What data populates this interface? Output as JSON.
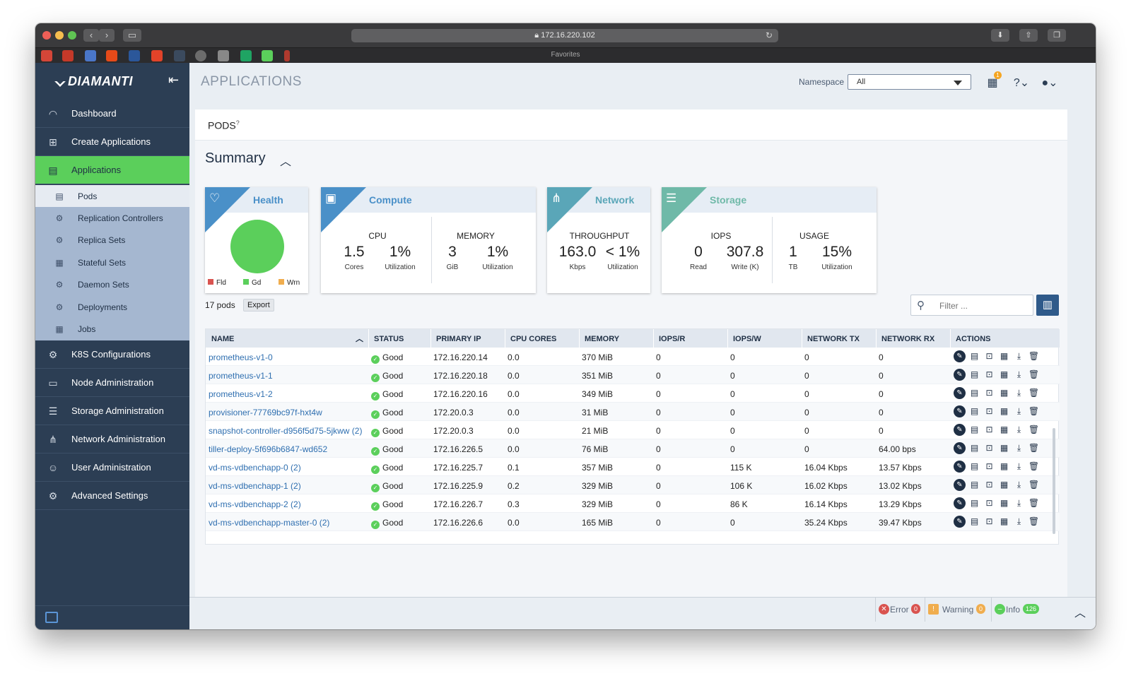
{
  "browser": {
    "url": "172.16.220.102",
    "favorites_label": "Favorites"
  },
  "sidebar": {
    "brand": "DIAMANTI",
    "items": [
      {
        "label": "Dashboard",
        "icon": "speedometer-icon"
      },
      {
        "label": "Create Applications",
        "icon": "plus-square-icon"
      },
      {
        "label": "Applications",
        "icon": "list-icon",
        "active": true
      },
      {
        "label": "K8S Configurations",
        "icon": "gear-cluster-icon"
      },
      {
        "label": "Node Administration",
        "icon": "server-icon"
      },
      {
        "label": "Storage Administration",
        "icon": "database-icon"
      },
      {
        "label": "Network Administration",
        "icon": "network-tree-icon"
      },
      {
        "label": "User Administration",
        "icon": "users-icon"
      },
      {
        "label": "Advanced Settings",
        "icon": "gears-icon"
      }
    ],
    "sub_items": [
      {
        "label": "Pods",
        "icon": "pod-icon",
        "active": true
      },
      {
        "label": "Replication Controllers",
        "icon": "replication-icon"
      },
      {
        "label": "Replica Sets",
        "icon": "replica-icon"
      },
      {
        "label": "Stateful Sets",
        "icon": "stateful-icon"
      },
      {
        "label": "Daemon Sets",
        "icon": "daemon-icon"
      },
      {
        "label": "Deployments",
        "icon": "deployment-icon"
      },
      {
        "label": "Jobs",
        "icon": "jobs-icon"
      }
    ]
  },
  "header": {
    "title": "APPLICATIONS",
    "namespace_label": "Namespace",
    "namespace_value": "All",
    "notifications_badge": "1"
  },
  "pods": {
    "title": "PODS",
    "help": "?",
    "summary_title": "Summary"
  },
  "cards": {
    "health": {
      "title": "Health",
      "legend": [
        "Fld",
        "Gd",
        "Wrn"
      ],
      "colors": [
        "#d9534f",
        "#5bcf5b",
        "#f0ad4e"
      ]
    },
    "compute": {
      "title": "Compute",
      "cpu_label": "CPU",
      "cpu_value": "1.5",
      "cpu_unit": "Cores",
      "cpu_util": "1%",
      "cpu_util_label": "Utilization",
      "mem_label": "MEMORY",
      "mem_value": "3",
      "mem_unit": "GiB",
      "mem_util": "1%",
      "mem_util_label": "Utilization"
    },
    "network": {
      "title": "Network",
      "tp_label": "THROUGHPUT",
      "tp_value": "163.0",
      "tp_unit": "Kbps",
      "tp_util": "< 1%",
      "tp_util_label": "Utilization"
    },
    "storage": {
      "title": "Storage",
      "iops_label": "IOPS",
      "read_value": "0",
      "read_label": "Read",
      "write_value": "307.8",
      "write_label": "Write (K)",
      "usage_label": "USAGE",
      "usage_value": "1",
      "usage_unit": "TB",
      "usage_util": "15%",
      "usage_util_label": "Utilization"
    }
  },
  "list": {
    "count": "17 pods",
    "export": "Export",
    "filter_placeholder": "Filter ..."
  },
  "table": {
    "columns": [
      "NAME",
      "STATUS",
      "PRIMARY IP",
      "CPU CORES",
      "MEMORY",
      "IOPS/R",
      "IOPS/W",
      "NETWORK TX",
      "NETWORK RX",
      "ACTIONS"
    ],
    "rows": [
      {
        "name": "prometheus-v1-0",
        "status": "Good",
        "ip": "172.16.220.14",
        "cpu": "0.0",
        "mem": "370 MiB",
        "iopsr": "0",
        "iopsw": "0",
        "tx": "0",
        "rx": "0"
      },
      {
        "name": "prometheus-v1-1",
        "status": "Good",
        "ip": "172.16.220.18",
        "cpu": "0.0",
        "mem": "351 MiB",
        "iopsr": "0",
        "iopsw": "0",
        "tx": "0",
        "rx": "0"
      },
      {
        "name": "prometheus-v1-2",
        "status": "Good",
        "ip": "172.16.220.16",
        "cpu": "0.0",
        "mem": "349 MiB",
        "iopsr": "0",
        "iopsw": "0",
        "tx": "0",
        "rx": "0"
      },
      {
        "name": "provisioner-77769bc97f-hxt4w",
        "status": "Good",
        "ip": "172.20.0.3",
        "cpu": "0.0",
        "mem": "31 MiB",
        "iopsr": "0",
        "iopsw": "0",
        "tx": "0",
        "rx": "0"
      },
      {
        "name": "snapshot-controller-d956f5d75-5jkww (2)",
        "status": "Good",
        "ip": "172.20.0.3",
        "cpu": "0.0",
        "mem": "21 MiB",
        "iopsr": "0",
        "iopsw": "0",
        "tx": "0",
        "rx": "0"
      },
      {
        "name": "tiller-deploy-5f696b6847-wd652",
        "status": "Good",
        "ip": "172.16.226.5",
        "cpu": "0.0",
        "mem": "76 MiB",
        "iopsr": "0",
        "iopsw": "0",
        "tx": "0",
        "rx": "64.00 bps"
      },
      {
        "name": "vd-ms-vdbenchapp-0 (2)",
        "status": "Good",
        "ip": "172.16.225.7",
        "cpu": "0.1",
        "mem": "357 MiB",
        "iopsr": "0",
        "iopsw": "115 K",
        "tx": "16.04 Kbps",
        "rx": "13.57 Kbps"
      },
      {
        "name": "vd-ms-vdbenchapp-1 (2)",
        "status": "Good",
        "ip": "172.16.225.9",
        "cpu": "0.2",
        "mem": "329 MiB",
        "iopsr": "0",
        "iopsw": "106 K",
        "tx": "16.02 Kbps",
        "rx": "13.02 Kbps"
      },
      {
        "name": "vd-ms-vdbenchapp-2 (2)",
        "status": "Good",
        "ip": "172.16.226.7",
        "cpu": "0.3",
        "mem": "329 MiB",
        "iopsr": "0",
        "iopsw": "86 K",
        "tx": "16.14 Kbps",
        "rx": "13.29 Kbps"
      },
      {
        "name": "vd-ms-vdbenchapp-master-0 (2)",
        "status": "Good",
        "ip": "172.16.226.6",
        "cpu": "0.0",
        "mem": "165 MiB",
        "iopsr": "0",
        "iopsw": "0",
        "tx": "35.24 Kbps",
        "rx": "39.47 Kbps"
      }
    ],
    "action_icons": [
      "edit-icon",
      "logs-icon",
      "terminal-icon",
      "stats-icon",
      "download-icon",
      "trash-icon"
    ]
  },
  "statusbar": {
    "error_label": "Error",
    "error_count": "0",
    "warning_label": "Warning",
    "warning_count": "0",
    "info_label": "Info",
    "info_count": "126"
  }
}
